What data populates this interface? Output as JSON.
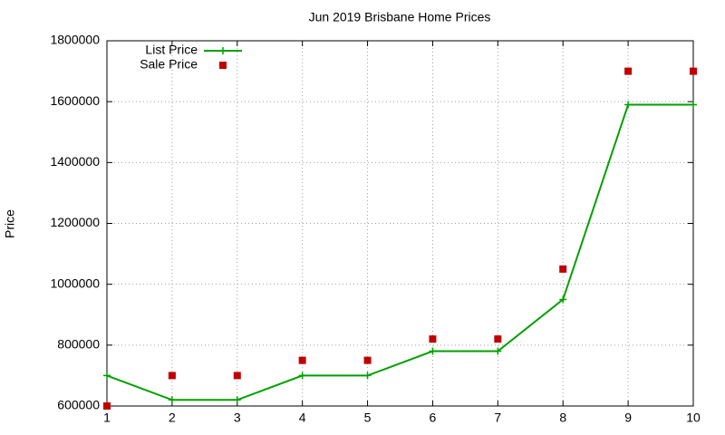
{
  "chart_data": {
    "type": "line",
    "title": "Jun 2019 Brisbane Home Prices",
    "y_label": "Price",
    "x": [
      1,
      2,
      3,
      4,
      5,
      6,
      7,
      8,
      9,
      10
    ],
    "series": [
      {
        "name": "List Price",
        "color": "#00a000",
        "marker": "plus",
        "line": true,
        "values": [
          700000,
          620000,
          620000,
          700000,
          700000,
          780000,
          780000,
          950000,
          1590000,
          1590000
        ]
      },
      {
        "name": "Sale Price",
        "color": "#c00000",
        "marker": "square",
        "line": false,
        "values": [
          600000,
          700000,
          700000,
          750000,
          750000,
          820000,
          820000,
          1050000,
          1700000,
          1700000
        ]
      }
    ],
    "xlim": [
      1,
      10
    ],
    "xticks": [
      1,
      2,
      3,
      4,
      5,
      6,
      7,
      8,
      9,
      10
    ],
    "ylim": [
      600000,
      1800000
    ],
    "yticks": [
      600000,
      800000,
      1000000,
      1200000,
      1400000,
      1600000,
      1800000
    ],
    "grid": true,
    "legend": "top-left"
  }
}
